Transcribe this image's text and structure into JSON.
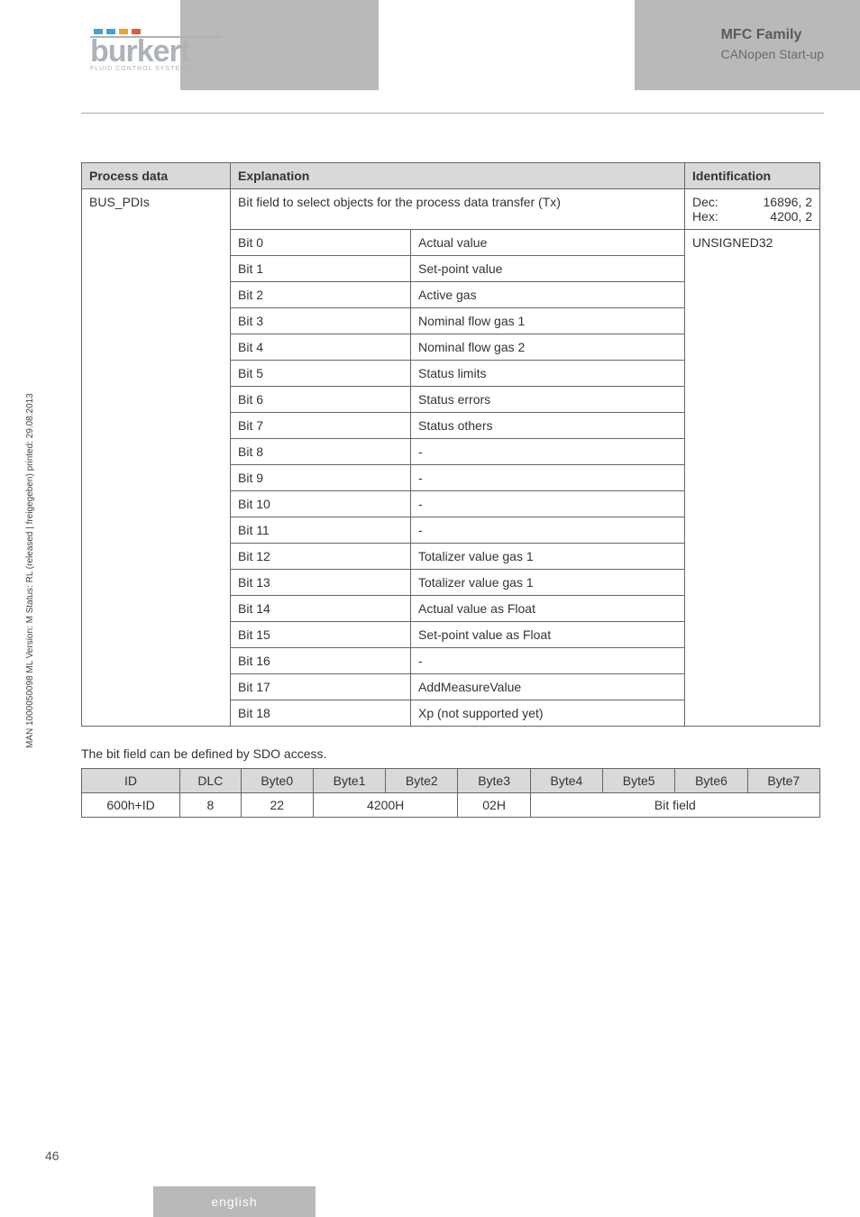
{
  "header": {
    "logo_text": "burkert",
    "logo_sub": "FLUID CONTROL SYSTEMS",
    "family": "MFC Family",
    "sub": "CANopen Start-up",
    "dot_colors": [
      "#4a9ed0",
      "#4a9ed0",
      "#e8a33d",
      "#d85c4a"
    ]
  },
  "main_table": {
    "headers": [
      "Process data",
      "Explanation",
      "Identification"
    ],
    "process_name": "BUS_PDIs",
    "explanation_top": "Bit field to select objects for the process data transfer (Tx)",
    "id_dec_label": "Dec:",
    "id_dec_val": "16896, 2",
    "id_hex_label": "Hex:",
    "id_hex_val": "4200, 2",
    "id_type": "UNSIGNED32",
    "rows": [
      {
        "bit": "Bit  0",
        "desc": "Actual value"
      },
      {
        "bit": "Bit  1",
        "desc": "Set-point value"
      },
      {
        "bit": "Bit  2",
        "desc": "Active gas"
      },
      {
        "bit": "Bit  3",
        "desc": "Nominal flow gas 1"
      },
      {
        "bit": "Bit  4",
        "desc": "Nominal flow gas 2"
      },
      {
        "bit": "Bit  5",
        "desc": "Status limits"
      },
      {
        "bit": "Bit  6",
        "desc": "Status errors"
      },
      {
        "bit": "Bit  7",
        "desc": "Status others"
      },
      {
        "bit": "Bit  8",
        "desc": "-"
      },
      {
        "bit": "Bit  9",
        "desc": "-"
      },
      {
        "bit": "Bit  10",
        "desc": "-"
      },
      {
        "bit": "Bit  11",
        "desc": "-"
      },
      {
        "bit": "Bit  12",
        "desc": "Totalizer value gas 1"
      },
      {
        "bit": "Bit  13",
        "desc": "Totalizer value gas 1"
      },
      {
        "bit": "Bit  14",
        "desc": "Actual value as Float"
      },
      {
        "bit": "Bit  15",
        "desc": "Set-point value as Float"
      },
      {
        "bit": "Bit  16",
        "desc": "-"
      },
      {
        "bit": "Bit  17",
        "desc": "AddMeasureValue"
      },
      {
        "bit": "Bit  18",
        "desc": "Xp (not supported yet)"
      }
    ]
  },
  "below_text": "The bit field can be defined by SDO access.",
  "sdo_table": {
    "headers": [
      "ID",
      "DLC",
      "Byte0",
      "Byte1",
      "Byte2",
      "Byte3",
      "Byte4",
      "Byte5",
      "Byte6",
      "Byte7"
    ],
    "row": {
      "id": "600h+ID",
      "dlc": "8",
      "byte0": "22",
      "byte12": "4200H",
      "byte3": "02H",
      "bitfield": "Bit field"
    }
  },
  "side_text": "MAN 1000050098 ML Version: M Status: RL (released | freigegeben) printed: 29.08.2013",
  "page_num": "46",
  "footer": "english"
}
